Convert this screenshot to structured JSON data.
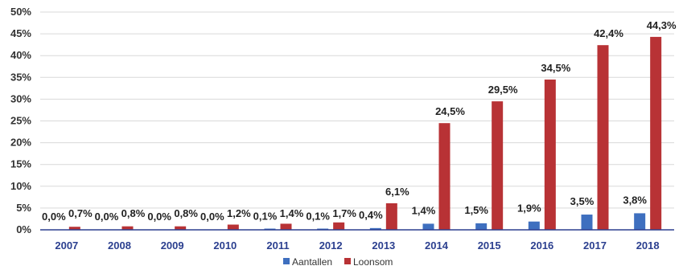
{
  "chart_data": {
    "type": "bar",
    "categories": [
      "2007",
      "2008",
      "2009",
      "2010",
      "2011",
      "2012",
      "2013",
      "2014",
      "2015",
      "2016",
      "2017",
      "2018"
    ],
    "series": [
      {
        "name": "Aantallen",
        "color": "#3e6fbf",
        "values": [
          0.0,
          0.0,
          0.0,
          0.0,
          0.1,
          0.1,
          0.4,
          1.4,
          1.5,
          1.9,
          3.5,
          3.8
        ],
        "labels": [
          "0,0%",
          "0,0%",
          "0,0%",
          "0,0%",
          "0,1%",
          "0,1%",
          "0,4%",
          "1,4%",
          "1,5%",
          "1,9%",
          "3,5%",
          "3,8%"
        ]
      },
      {
        "name": "Loonsom",
        "color": "#b83235",
        "values": [
          0.7,
          0.8,
          0.8,
          1.2,
          1.4,
          1.7,
          6.1,
          24.5,
          29.5,
          34.5,
          42.4,
          44.3
        ],
        "labels": [
          "0,7%",
          "0,8%",
          "0,8%",
          "1,2%",
          "1,4%",
          "1,7%",
          "6,1%",
          "24,5%",
          "29,5%",
          "34,5%",
          "42,4%",
          "44,3%"
        ]
      }
    ],
    "yticks": [
      "0%",
      "5%",
      "10%",
      "15%",
      "20%",
      "25%",
      "30%",
      "35%",
      "40%",
      "45%",
      "50%"
    ],
    "ylim": [
      0,
      50
    ],
    "grid": true,
    "legend_position": "bottom"
  }
}
